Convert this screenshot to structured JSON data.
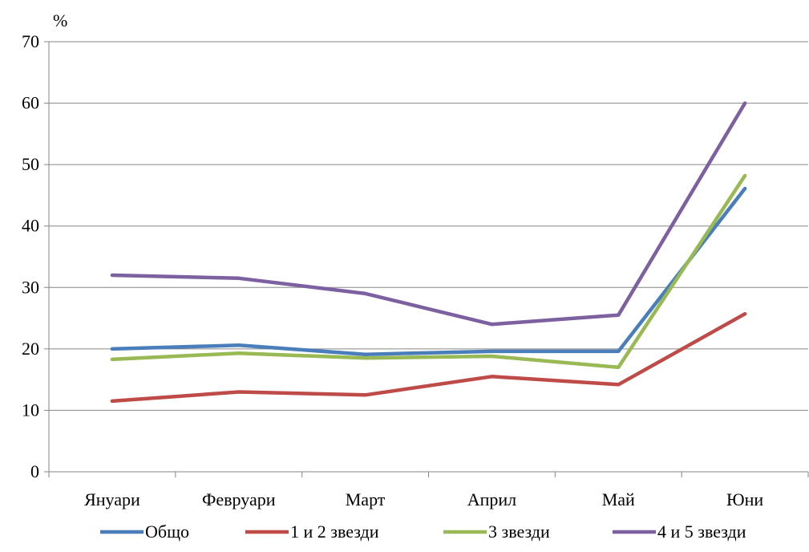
{
  "chart_data": {
    "type": "line",
    "ylabel": "%",
    "ylim": [
      0,
      70
    ],
    "yticks": [
      "0",
      "10",
      "20",
      "30",
      "40",
      "50",
      "60",
      "70"
    ],
    "categories": [
      "Януари",
      "Февруари",
      "Март",
      "Април",
      "Май",
      "Юни"
    ],
    "series": [
      {
        "name": "Общо",
        "color": "#4a7ebb",
        "values": [
          20.0,
          20.6,
          19.1,
          19.6,
          19.6,
          46.1
        ]
      },
      {
        "name": "1 и 2 звезди",
        "color": "#be4b48",
        "values": [
          11.5,
          13.0,
          12.5,
          15.5,
          14.2,
          25.7
        ]
      },
      {
        "name": "3 звезди",
        "color": "#98b954",
        "values": [
          18.3,
          19.3,
          18.5,
          18.8,
          17.0,
          48.2
        ]
      },
      {
        "name": "4 и 5 звезди",
        "color": "#7d60a0",
        "values": [
          32.0,
          31.5,
          29.0,
          24.0,
          25.5,
          60.0
        ]
      }
    ],
    "grid": true,
    "legend_position": "bottom"
  }
}
